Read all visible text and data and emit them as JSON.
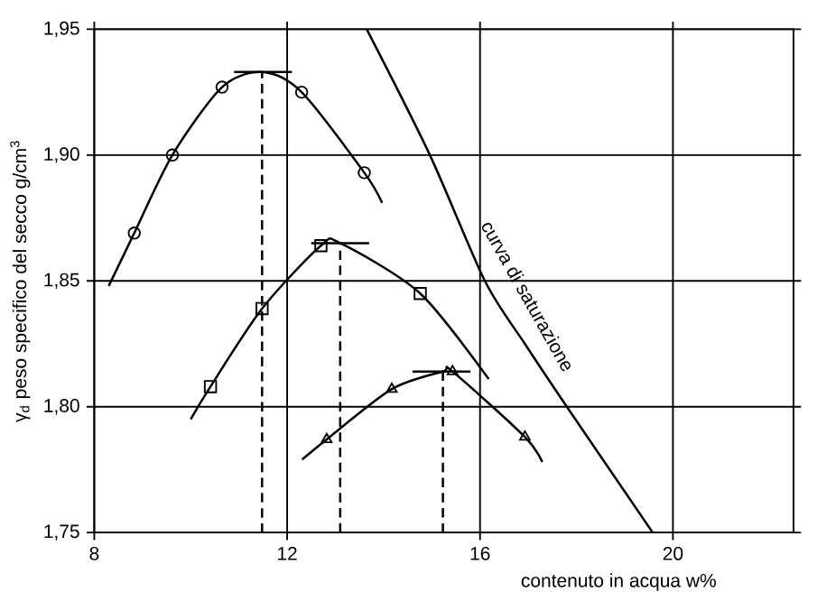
{
  "chart_data": {
    "type": "scatter",
    "xlabel": "contenuto in acqua w%",
    "ylabel": "γ$_{d}$ peso specifico del secco g/cm$^{3}$",
    "xlim": [
      8,
      22.5
    ],
    "ylim": [
      1.75,
      1.95
    ],
    "xticks": [
      8,
      12,
      16,
      20
    ],
    "yticks": [
      {
        "value": 1.75,
        "label": "1,75"
      },
      {
        "value": 1.8,
        "label": "1,80"
      },
      {
        "value": 1.85,
        "label": "1,85"
      },
      {
        "value": 1.9,
        "label": "1,90"
      },
      {
        "value": 1.95,
        "label": "1,95"
      }
    ],
    "grid": true,
    "annotations": [
      "curva di saturazione"
    ],
    "series": [
      {
        "marker": "circle",
        "color": "#000000",
        "x": [
          8.83,
          9.62,
          10.65,
          12.3,
          13.6
        ],
        "values": [
          1.869,
          1.9,
          1.927,
          1.925,
          1.893
        ]
      },
      {
        "type": "line",
        "marker": "none",
        "color": "#000000",
        "x": [
          8.3,
          8.83,
          9.62,
          10.65,
          11.48,
          12.3,
          13.6,
          13.97
        ],
        "values": [
          1.848,
          1.869,
          1.9,
          1.927,
          1.933,
          1.925,
          1.893,
          1.881
        ]
      },
      {
        "type": "line",
        "marker": "none",
        "line_style": "dashed",
        "color": "#000000",
        "x": [
          11.48,
          11.48
        ],
        "values": [
          1.75,
          1.933
        ]
      },
      {
        "type": "line",
        "marker": "none",
        "color": "#000000",
        "x": [
          10.9,
          12.1
        ],
        "values": [
          1.933,
          1.933
        ]
      },
      {
        "marker": "square",
        "color": "#000000",
        "x": [
          10.41,
          11.48,
          12.7,
          14.76
        ],
        "values": [
          1.808,
          1.839,
          1.864,
          1.845
        ]
      },
      {
        "type": "line",
        "marker": "none",
        "color": "#000000",
        "x": [
          10.0,
          10.41,
          11.48,
          12.7,
          13.1,
          14.76,
          16.18
        ],
        "values": [
          1.795,
          1.808,
          1.839,
          1.864,
          1.865,
          1.845,
          1.811
        ]
      },
      {
        "type": "line",
        "marker": "none",
        "line_style": "dashed",
        "color": "#000000",
        "x": [
          13.1,
          13.1
        ],
        "values": [
          1.75,
          1.865
        ]
      },
      {
        "type": "line",
        "marker": "none",
        "color": "#000000",
        "x": [
          12.5,
          13.7
        ],
        "values": [
          1.865,
          1.865
        ]
      },
      {
        "marker": "triangle",
        "color": "#000000",
        "x": [
          12.82,
          14.17,
          15.43,
          16.93
        ],
        "values": [
          1.787,
          1.807,
          1.814,
          1.788
        ]
      },
      {
        "type": "line",
        "marker": "none",
        "color": "#000000",
        "x": [
          12.31,
          12.82,
          14.17,
          15.23,
          15.43,
          16.93,
          17.29
        ],
        "values": [
          1.779,
          1.787,
          1.807,
          1.814,
          1.814,
          1.788,
          1.778
        ]
      },
      {
        "type": "line",
        "marker": "none",
        "line_style": "dashed",
        "color": "#000000",
        "x": [
          15.23,
          15.23
        ],
        "values": [
          1.75,
          1.814
        ]
      },
      {
        "type": "line",
        "marker": "none",
        "color": "#000000",
        "x": [
          14.6,
          15.8
        ],
        "values": [
          1.814,
          1.814
        ]
      },
      {
        "type": "line",
        "marker": "none",
        "color": "#000000",
        "x": [
          13.65,
          14.96,
          16.1,
          16.93,
          17.8,
          19.58
        ],
        "values": [
          1.95,
          1.9,
          1.85,
          1.825,
          1.8,
          1.75
        ]
      }
    ]
  }
}
